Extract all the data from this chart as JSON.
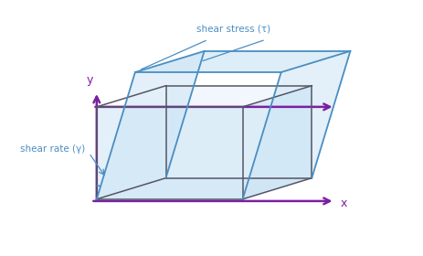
{
  "bg_color": "#ffffff",
  "axis_color": "#7B1FA2",
  "box_edge_color": "#555566",
  "fill_color": "#cce5f5",
  "fill_alpha": 0.55,
  "shear_line_color": "#4a8ec2",
  "top_plate_fill": "#cce5f5",
  "label_color": "#4a8ec2",
  "horiz_line_color": "#7B1FA2",
  "shear_stress_label": "shear stress (τ)",
  "shear_rate_label": "shear rate (γ)",
  "x_label": "x",
  "y_label": "y",
  "figsize": [
    4.64,
    2.8
  ],
  "dpi": 100
}
